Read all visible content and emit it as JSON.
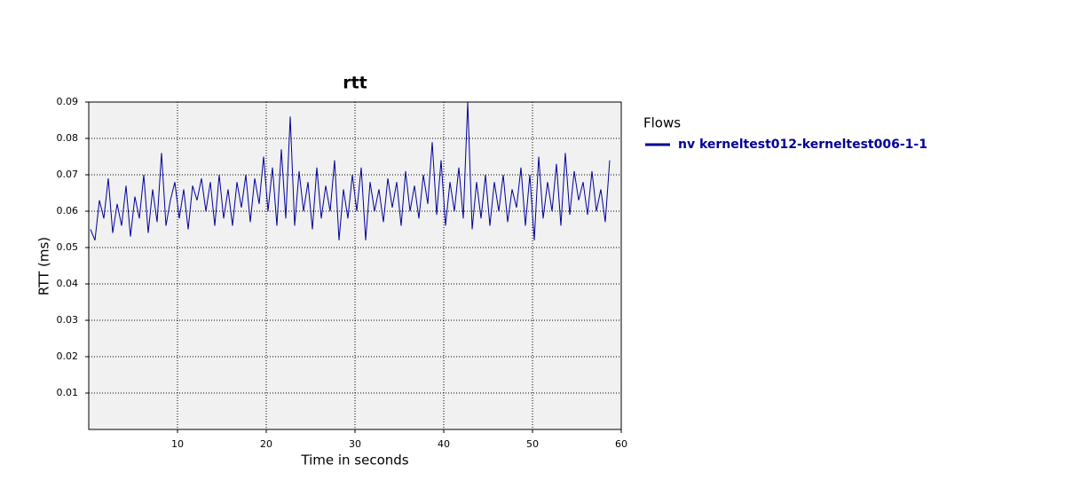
{
  "chart_data": {
    "type": "line",
    "title": "rtt",
    "xlabel": "Time in seconds",
    "ylabel": "RTT (ms)",
    "legend_title": "Flows",
    "legend": "right",
    "grid": true,
    "xlim": [
      0,
      60
    ],
    "xticks": [
      10,
      20,
      30,
      40,
      50,
      60
    ],
    "ylim": [
      0,
      0.09
    ],
    "yticks": [
      0.01,
      0.02,
      0.03,
      0.04,
      0.05,
      0.06,
      0.07,
      0.08,
      0.09
    ],
    "x": [
      0.2,
      0.7,
      1.2,
      1.7,
      2.2,
      2.7,
      3.2,
      3.7,
      4.2,
      4.7,
      5.2,
      5.7,
      6.2,
      6.7,
      7.2,
      7.7,
      8.2,
      8.7,
      9.2,
      9.7,
      10.2,
      10.7,
      11.2,
      11.7,
      12.2,
      12.7,
      13.2,
      13.7,
      14.2,
      14.7,
      15.2,
      15.7,
      16.2,
      16.7,
      17.2,
      17.7,
      18.2,
      18.7,
      19.2,
      19.7,
      20.2,
      20.7,
      21.2,
      21.7,
      22.2,
      22.7,
      23.2,
      23.7,
      24.2,
      24.7,
      25.2,
      25.7,
      26.2,
      26.7,
      27.2,
      27.7,
      28.2,
      28.7,
      29.2,
      29.7,
      30.2,
      30.7,
      31.2,
      31.7,
      32.2,
      32.7,
      33.2,
      33.7,
      34.2,
      34.7,
      35.2,
      35.7,
      36.2,
      36.7,
      37.2,
      37.7,
      38.2,
      38.7,
      39.2,
      39.7,
      40.2,
      40.7,
      41.2,
      41.7,
      42.2,
      42.7,
      43.2,
      43.7,
      44.2,
      44.7,
      45.2,
      45.7,
      46.2,
      46.7,
      47.2,
      47.7,
      48.2,
      48.7,
      49.2,
      49.7,
      50.2,
      50.7,
      51.2,
      51.7,
      52.2,
      52.7,
      53.2,
      53.7,
      54.2,
      54.7,
      55.2,
      55.7,
      56.2,
      56.7,
      57.2,
      57.7,
      58.2,
      58.7
    ],
    "series": [
      {
        "name": "nv kerneltest012-kerneltest006-1-1",
        "color": "#000099",
        "values": [
          0.055,
          0.052,
          0.063,
          0.058,
          0.069,
          0.054,
          0.062,
          0.056,
          0.067,
          0.053,
          0.064,
          0.058,
          0.07,
          0.054,
          0.066,
          0.057,
          0.076,
          0.056,
          0.063,
          0.068,
          0.058,
          0.066,
          0.055,
          0.067,
          0.063,
          0.069,
          0.06,
          0.068,
          0.056,
          0.07,
          0.058,
          0.066,
          0.056,
          0.068,
          0.061,
          0.07,
          0.057,
          0.069,
          0.062,
          0.075,
          0.06,
          0.072,
          0.056,
          0.077,
          0.058,
          0.086,
          0.056,
          0.071,
          0.06,
          0.068,
          0.055,
          0.072,
          0.058,
          0.067,
          0.06,
          0.074,
          0.052,
          0.066,
          0.058,
          0.07,
          0.06,
          0.072,
          0.052,
          0.068,
          0.06,
          0.066,
          0.057,
          0.069,
          0.061,
          0.068,
          0.056,
          0.071,
          0.06,
          0.067,
          0.058,
          0.07,
          0.062,
          0.079,
          0.059,
          0.074,
          0.056,
          0.068,
          0.06,
          0.072,
          0.058,
          0.09,
          0.055,
          0.068,
          0.058,
          0.07,
          0.056,
          0.068,
          0.06,
          0.07,
          0.057,
          0.066,
          0.061,
          0.072,
          0.056,
          0.07,
          0.052,
          0.075,
          0.058,
          0.068,
          0.06,
          0.073,
          0.056,
          0.076,
          0.059,
          0.071,
          0.063,
          0.068,
          0.059,
          0.071,
          0.06,
          0.066,
          0.057,
          0.074
        ]
      }
    ]
  }
}
